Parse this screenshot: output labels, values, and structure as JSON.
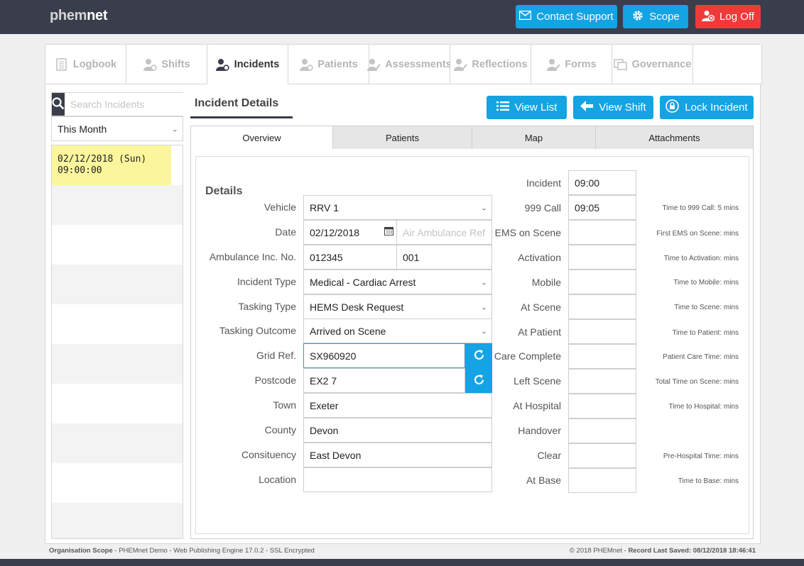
{
  "app": {
    "logo_light": "phem",
    "logo_bold": "net"
  },
  "header": {
    "contact_support": "Contact Support",
    "scope": "Scope",
    "log_off": "Log Off"
  },
  "colors": {
    "primary": "#14a3e3",
    "danger": "#f03a3a",
    "dark": "#3a3d4b",
    "selected_row": "#fbf69c"
  },
  "nav": {
    "tabs": [
      {
        "label": "Logbook",
        "icon": "logbook-icon"
      },
      {
        "label": "Shifts",
        "icon": "shifts-icon"
      },
      {
        "label": "Incidents",
        "icon": "incidents-icon",
        "active": true
      },
      {
        "label": "Patients",
        "icon": "patients-icon"
      },
      {
        "label": "Assessments",
        "icon": "assessments-icon"
      },
      {
        "label": "Reflections",
        "icon": "reflections-icon"
      },
      {
        "label": "Forms",
        "icon": "forms-icon"
      },
      {
        "label": "Governance",
        "icon": "governance-icon"
      }
    ]
  },
  "sidebar": {
    "search_placeholder": "Search Incidents",
    "period": "This Month",
    "incidents": [
      {
        "date": "02/12/2018 (Sun)",
        "time": "09:00:00"
      }
    ]
  },
  "page": {
    "title": "Incident Details",
    "view_list": "View List",
    "view_shift": "View Shift",
    "lock_incident": "Lock Incident"
  },
  "subtabs": [
    "Overview",
    "Patients",
    "Map",
    "Attachments"
  ],
  "details": {
    "heading": "Details",
    "vehicle_label": "Vehicle",
    "vehicle": "RRV 1",
    "date_label": "Date",
    "date": "02/12/2018",
    "air_ref_placeholder": "Air Ambulance Ref",
    "amb_label": "Ambulance Inc. No.",
    "amb_no": "012345",
    "amb_suffix": "001",
    "incident_type_label": "Incident Type",
    "incident_type": "Medical - Cardiac Arrest",
    "tasking_type_label": "Tasking Type",
    "tasking_type": "HEMS Desk Request",
    "tasking_outcome_label": "Tasking Outcome",
    "tasking_outcome": "Arrived on Scene",
    "grid_label": "Grid Ref.",
    "grid": "SX960920",
    "postcode_label": "Postcode",
    "postcode": "EX2 7",
    "town_label": "Town",
    "town": "Exeter",
    "county_label": "County",
    "county": "Devon",
    "constituency_label": "Consituency",
    "constituency": "East Devon",
    "location_label": "Location",
    "location": ""
  },
  "times": [
    {
      "label": "Incident",
      "value": "09:00",
      "note": ""
    },
    {
      "label": "999 Call",
      "value": "09:05",
      "note": "Time to 999 Call: 5 mins"
    },
    {
      "label": "EMS on Scene",
      "value": "",
      "note": "First EMS on Scene:  mins"
    },
    {
      "label": "Activation",
      "value": "",
      "note": "Time to Activation:  mins"
    },
    {
      "label": "Mobile",
      "value": "",
      "note": "Time to Mobile:  mins"
    },
    {
      "label": "At Scene",
      "value": "",
      "note": "Time to Scene:  mins"
    },
    {
      "label": "At Patient",
      "value": "",
      "note": "Time to Patient:  mins"
    },
    {
      "label": "Care Complete",
      "value": "",
      "note": "Patient Care Time:  mins"
    },
    {
      "label": "Left Scene",
      "value": "",
      "note": "Total Time on Scene:  mins"
    },
    {
      "label": "At Hospital",
      "value": "",
      "note": "Time to Hospital:  mins"
    },
    {
      "label": "Handover",
      "value": "",
      "note": ""
    },
    {
      "label": "Clear",
      "value": "",
      "note": "Pre-Hospital Time:  mins"
    },
    {
      "label": "At Base",
      "value": "",
      "note": "Time to Base:  mins"
    }
  ],
  "footer": {
    "org_label": "Organisation Scope",
    "left_rest": " - PHEMnet Demo - Web Publishing Engine 17.0.2 - SSL Encrypted",
    "copyright": "© 2018 PHEMnet - ",
    "saved_label": "Record Last Saved: 08/12/2018 18:46:41"
  }
}
